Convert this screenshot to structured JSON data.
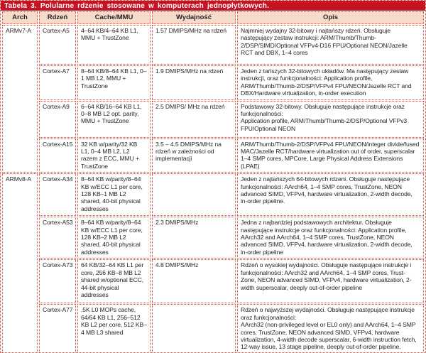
{
  "title": "Tabela 3. Polularne rdzenie stosowane w komputerach jednopłytkowych.",
  "columns": [
    "Arch",
    "Rdzeń",
    "Cache/MMU",
    "Wydajność",
    "Opis"
  ],
  "colors": {
    "title_bar": "#c41322",
    "header_bg": "#f4dbca",
    "border": "#e2493c",
    "text": "#2a2324"
  },
  "groups": [
    {
      "arch": "ARMv7-A",
      "rows": [
        {
          "core": "Cortex-A5",
          "cache": "4–64 KB/4–64 KB L1, MMU + TrustZone",
          "perf": "1.57 DMIPS/MHz na rdzeń",
          "desc": "Najmniej wydajny 32-bitowy i najtańszy rdzeń. Obsługuje następujący zestaw instrukcji: ARM/Thumb/Thumb-2/DSP/SIMD/Optional VFPv4-D16 FPU/Optional NEON/Jazelle RCT and DBX, 1–4 cores"
        },
        {
          "core": "Cortex-A7",
          "cache": "8–64 KB/8–64 KB L1, 0–1 MB L2, MMU + TrustZone",
          "perf": "1.9 DMIPS/MHz na rdzeń",
          "desc": "Jeden z tańszych 32-bitowych układów. Ma następujący zestaw instrukcji, oraz funkcjonalności: Application profile, ARM/Thumb/Thumb-2/DSP/VFPv4 FPU/NEON/Jazelle RCT and DBX/Hardware virtualization, in-order execution"
        },
        {
          "core": "Cortex-A9",
          "cache": "6–64 KB/16–64 KB L1, 0–8 MB L2 opt. parity, MMU + TrustZone",
          "perf": "2.5 DMIPS/\nMHz na rdzeń",
          "desc": "Podstawowy 32-bitowy. Obsługuje następujące instrukcje oraz funkcjonalności:\nApplication profile, ARM/Thumb/Thumb-2/DSP/Optional VFPv3 FPU/Optional NEON"
        },
        {
          "core": "Cortex-A15",
          "cache": "32 KB w/parity/32 KB L1, 0–4 MB L2, L2 razem z ECC, MMU + TrustZone",
          "perf": "3.5 – 4.5 DMIPS/MHz na rdzeń w zależności od implementacji",
          "desc": "ARM/Thumb/Thumb-2/DSP/VFPv4 FPU/NEON/integer divide/fused MAC/Jazelle RCT/hardware virtualization out of order, superscalar 1–4 SMP cores, MPCore, Large Physical Address Extensions (LPAE)"
        }
      ]
    },
    {
      "arch": "ARMv8-A",
      "rows": [
        {
          "core": "Cortex-A34",
          "cache": "8–64 KB w/parity/8–64 KB w/ECC L1 per core, 128 KB–1 MB L2 shared, 40-bit physical addresses",
          "perf": "",
          "desc": "Jeden z najtańszych 64-bitowych rdzeni. Obsługuje następujące funkcjonalności: AArch64, 1–4 SMP cores, TrustZone, NEON advanced SIMD, VFPv4, hardware virtualization, 2-width decode, in-order pipeline."
        },
        {
          "core": "Cortex-A53",
          "cache": "8–64 KB w/parity/8–64 KB w/ECC L1 per core, 128 KB–2 MB L2 shared, 40-bit physical addresses",
          "perf": "2.3 DMIPS/MHz",
          "desc": "Jedna z najbardziej podstawowych architektur. Obsługuje następujące instrukcje oraz funkcjonalności: Application profile, AArch32 and AArch64, 1–4 SMP cores, TrustZone, NEON advanced SIMD, VFPv4, hardware virtualization, 2-width decode, in-order pipeline"
        },
        {
          "core": "Cortex-A73",
          "cache": "64 KB/32–64 KB L1 per core, 256 KB–8 MB L2 shared w/optional ECC, 44-bit physical addresses",
          "perf": "4.8 DMIPS/MHz",
          "desc": "Rdzeń o wysokiej wydajności. Obsługuje następujące instrukcje i funkcjonalności: AArch32 and AArch64, 1–4 SMP cores, Trust-Zone, NEON advanced SIMD, VFPv4, hardware virtualization, 2-width superscalar, deeply out-of-order pipeline"
        },
        {
          "core": "Cortex-A77",
          "cache": ".5K L0 MOPs cache, 64/64 KB L1, 256–512 KB L2 per core, 512 KB–4 MB L3 shared",
          "perf": "",
          "desc": "Rdzeń o najwyższej wydajności. Obsługuje następujące instrukcje oraz funkcjonalności:\nAArch32 (non-privileged level or EL0 only) and AArch64, 1–4 SMP cores, TrustZone, NEON advanced SIMD, VFPv4, hardware virtualization, 4-width decode superscalar, 6-width instruction fetch, 12-way issue, 13 stage pipeline, deeply out-of-order pipeline."
        }
      ]
    }
  ]
}
